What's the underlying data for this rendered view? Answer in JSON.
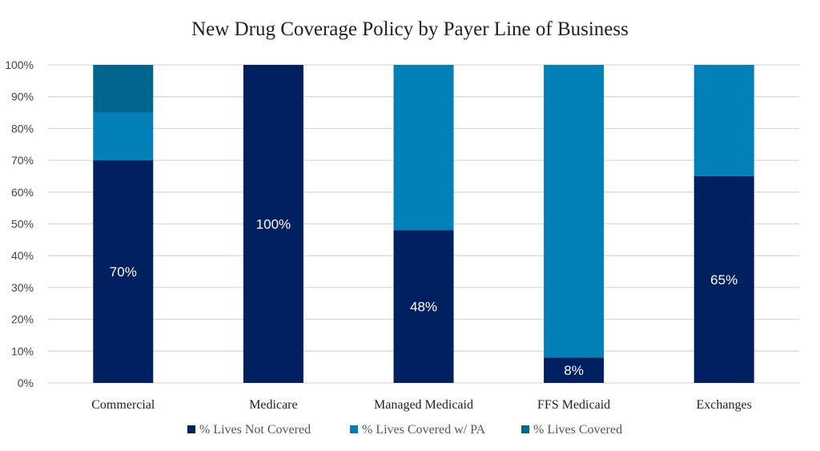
{
  "chart_data": {
    "type": "bar",
    "stacked": true,
    "title": "New Drug Coverage Policy by Payer Line of Business",
    "categories": [
      "Commercial",
      "Medicare",
      "Managed Medicaid",
      "FFS Medicaid",
      "Exchanges"
    ],
    "series": [
      {
        "name": "% Lives Not Covered",
        "values": [
          70,
          100,
          48,
          8,
          65
        ],
        "color": "#002060",
        "data_labels": [
          "70%",
          "100%",
          "48%",
          "8%",
          "65%"
        ]
      },
      {
        "name": "% Lives Covered w/ PA",
        "values": [
          15,
          0,
          52,
          92,
          35
        ],
        "color": "#0080B6"
      },
      {
        "name": "% Lives Covered",
        "values": [
          15,
          0,
          0,
          0,
          0
        ],
        "color": "#006690"
      }
    ],
    "y_ticks": [
      "0%",
      "10%",
      "20%",
      "30%",
      "40%",
      "50%",
      "60%",
      "70%",
      "80%",
      "90%",
      "100%"
    ],
    "ylim": [
      0,
      100
    ],
    "grid": true,
    "legend_position": "bottom"
  }
}
